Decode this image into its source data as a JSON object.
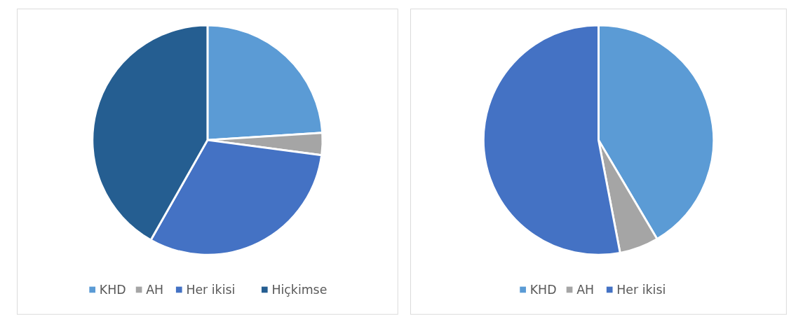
{
  "chart_data": [
    {
      "type": "pie",
      "categories": [
        "KHD",
        "AH",
        "Her ikisi",
        "Hiçkimse"
      ],
      "values": [
        24,
        3.1,
        31.1,
        41.8
      ],
      "colors": [
        "#5b9bd5",
        "#a5a5a5",
        "#4472c4",
        "#255e91"
      ],
      "legend": "bottom"
    },
    {
      "type": "pie",
      "categories": [
        "KHD",
        "AH",
        "Her ikisi"
      ],
      "values": [
        41.5,
        5.5,
        53
      ],
      "colors": [
        "#5b9bd5",
        "#a5a5a5",
        "#4472c4"
      ],
      "legend": "bottom"
    }
  ]
}
